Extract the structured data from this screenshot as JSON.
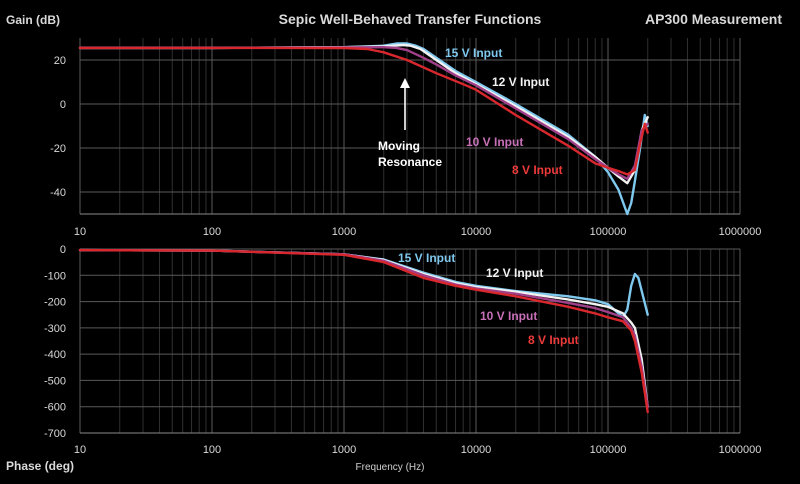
{
  "chart_data": {
    "type": "line",
    "title": "Sepic Well-Behaved Transfer Functions",
    "subtitle": "AP300 Measurement",
    "xlabel": "Frequency (Hz)",
    "x_scale": "log",
    "x_ticks": [
      "10",
      "100",
      "1000",
      "10000",
      "100000",
      "1000000"
    ],
    "grid": true,
    "annotation": "Moving\nResonance",
    "colors": {
      "15 V Input": "#7fc8ee",
      "12 V Input": "#f2f2f2",
      "10 V Input": "#a04088",
      "8 V Input": "#d8282e",
      "grid": "#5a5a5a",
      "minor_grid": "#303030"
    },
    "panels": [
      {
        "name": "gain",
        "ylabel": "Gain (dB)",
        "ylim": [
          -50,
          30
        ],
        "y_ticks": [
          "20",
          "0",
          "-20",
          "-40"
        ],
        "series": [
          {
            "name": "15 V Input",
            "label": "15 V Input",
            "label_color": "#7fc8ee",
            "x": [
              10,
              100,
              1000,
              2000,
              2500,
              3000,
              3500,
              4000,
              5000,
              7000,
              10000,
              20000,
              50000,
              80000,
              100000,
              120000,
              140000,
              150000,
              160000,
              175000,
              190000,
              200000
            ],
            "y": [
              25.5,
              25.5,
              25.8,
              26.5,
              27.5,
              27.5,
              26.5,
              25,
              21,
              15,
              10,
              0,
              -14,
              -24,
              -31,
              -39,
              -50,
              -45,
              -35,
              -20,
              -5,
              -10
            ]
          },
          {
            "name": "12 V Input",
            "label": "12 V Input",
            "label_color": "#f2f2f2",
            "x": [
              10,
              100,
              1000,
              2000,
              2800,
              3200,
              3800,
              5000,
              7000,
              10000,
              20000,
              50000,
              80000,
              100000,
              120000,
              140000,
              160000,
              180000,
              200000
            ],
            "y": [
              25.5,
              25.5,
              25.8,
              26.2,
              26.8,
              26.5,
              25,
              20,
              14,
              9,
              -1,
              -15,
              -24,
              -29,
              -33,
              -36,
              -30,
              -12,
              -6
            ]
          },
          {
            "name": "10 V Input",
            "label": "10 V Input",
            "label_color": "#c870b8",
            "x": [
              10,
              100,
              1000,
              2000,
              2500,
              3000,
              4000,
              5000,
              7000,
              10000,
              20000,
              50000,
              80000,
              100000,
              120000,
              140000,
              160000,
              180000,
              200000
            ],
            "y": [
              25.5,
              25.5,
              25.7,
              25.8,
              25.5,
              24.5,
              21,
              18,
              13,
              8.5,
              -2,
              -16,
              -25,
              -29,
              -32,
              -34,
              -28,
              -12,
              -9
            ]
          },
          {
            "name": "8 V Input",
            "label": "8 V Input",
            "label_color": "#ef3a3a",
            "x": [
              10,
              100,
              1000,
              1500,
              2000,
              3000,
              5000,
              8000,
              10000,
              20000,
              50000,
              80000,
              100000,
              120000,
              140000,
              160000,
              175000,
              190000,
              200000
            ],
            "y": [
              25.5,
              25.5,
              25.4,
              25,
              23.5,
              20,
              14,
              9,
              6.5,
              -5,
              -19,
              -27,
              -29,
              -30.5,
              -32,
              -30,
              -18,
              -9,
              -13
            ]
          }
        ]
      },
      {
        "name": "phase",
        "ylabel": "Phase (deg)",
        "ylim": [
          -700,
          0
        ],
        "y_ticks": [
          "0",
          "-100",
          "-200",
          "-300",
          "-400",
          "-500",
          "-600",
          "-700"
        ],
        "series": [
          {
            "name": "15 V Input",
            "label": "15 V Input",
            "label_color": "#7fc8ee",
            "x": [
              10,
              100,
              1000,
              2000,
              4000,
              7000,
              10000,
              20000,
              50000,
              80000,
              100000,
              130000,
              140000,
              150000,
              160000,
              170000,
              200000
            ],
            "y": [
              -4,
              -6,
              -20,
              -40,
              -90,
              -125,
              -140,
              -160,
              -180,
              -195,
              -210,
              -260,
              -230,
              -140,
              -95,
              -110,
              -250
            ]
          },
          {
            "name": "12 V Input",
            "label": "12 V Input",
            "label_color": "#f2f2f2",
            "x": [
              10,
              100,
              1000,
              2000,
              4000,
              7000,
              10000,
              20000,
              50000,
              80000,
              100000,
              130000,
              150000,
              160000,
              180000,
              200000
            ],
            "y": [
              -4,
              -6,
              -20,
              -42,
              -95,
              -130,
              -145,
              -163,
              -192,
              -210,
              -220,
              -245,
              -280,
              -300,
              -420,
              -600
            ]
          },
          {
            "name": "10 V Input",
            "label": "10 V Input",
            "label_color": "#c870b8",
            "x": [
              10,
              100,
              1000,
              2000,
              4000,
              7000,
              10000,
              20000,
              50000,
              80000,
              100000,
              130000,
              150000,
              160000,
              180000,
              200000
            ],
            "y": [
              -4,
              -6,
              -20,
              -45,
              -100,
              -135,
              -150,
              -170,
              -205,
              -225,
              -240,
              -260,
              -300,
              -330,
              -450,
              -600
            ]
          },
          {
            "name": "8 V Input",
            "label": "8 V Input",
            "label_color": "#ef3a3a",
            "x": [
              10,
              100,
              1000,
              2000,
              4000,
              7000,
              10000,
              20000,
              50000,
              80000,
              100000,
              130000,
              150000,
              160000,
              180000,
              200000
            ],
            "y": [
              -4,
              -6,
              -22,
              -50,
              -110,
              -140,
              -155,
              -180,
              -220,
              -245,
              -260,
              -275,
              -310,
              -350,
              -470,
              -620
            ]
          }
        ]
      }
    ]
  }
}
